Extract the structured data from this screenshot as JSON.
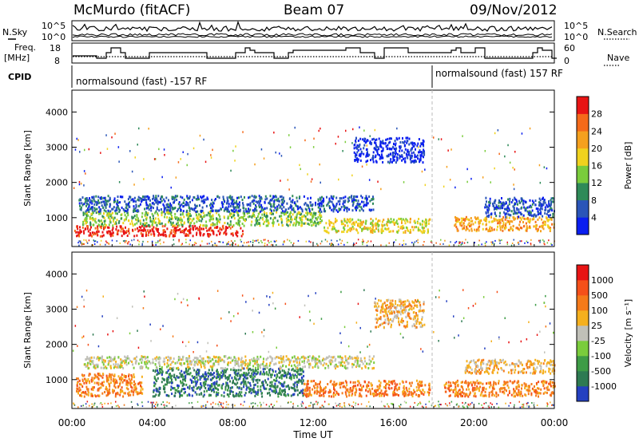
{
  "header": {
    "station": "McMurdo (fitACF)",
    "beam": "Beam 07",
    "date": "09/Nov/2012"
  },
  "top_panels": {
    "nsky_label": "N.Sky",
    "nsearch_label": "N.Search",
    "count_ticks": [
      "10^5",
      "10^0"
    ],
    "freq_label_1": "Freq.",
    "freq_label_2": "[MHz]",
    "freq_ticks": [
      "18",
      "8"
    ],
    "nave_label": "Nave",
    "nave_ticks": [
      "60",
      "0"
    ],
    "cpid_label": "CPID",
    "cpid_segments": [
      "normalsound (fast) -157 RF",
      "normalsound (fast) 157 RF"
    ]
  },
  "chart_data": [
    {
      "type": "heatmap",
      "title": "",
      "quantity": "Power",
      "ylabel": "Slant Range [km]",
      "xlabel": "Time UT",
      "ylim": [
        180,
        4620
      ],
      "yticks": [
        1000,
        2000,
        3000,
        4000
      ],
      "x_ticks": [
        "00:00",
        "04:00",
        "08:00",
        "12:00",
        "16:00",
        "20:00",
        "00:00"
      ],
      "colorbar": {
        "label": "Power [dB]",
        "ticks": [
          "4",
          "8",
          "12",
          "16",
          "20",
          "24",
          "28"
        ],
        "colors": [
          "#0a1ef0",
          "#2a55b8",
          "#2e8a58",
          "#7acc3c",
          "#f0d21e",
          "#f5a01e",
          "#f56a1a",
          "#e81414"
        ]
      },
      "scatter_bands": [
        {
          "t0": 0.1,
          "t1": 8.5,
          "r0": 500,
          "r1": 800,
          "level": 7
        },
        {
          "t0": 0.5,
          "t1": 12.5,
          "r0": 800,
          "r1": 1200,
          "level": 3
        },
        {
          "t0": 0.3,
          "t1": 15.0,
          "r0": 1200,
          "r1": 1650,
          "level": 1
        },
        {
          "t0": 12.5,
          "t1": 17.8,
          "r0": 600,
          "r1": 1000,
          "level": 4
        },
        {
          "t0": 19.0,
          "t1": 24.0,
          "r0": 650,
          "r1": 1050,
          "level": 5
        },
        {
          "t0": 20.5,
          "t1": 24.0,
          "r0": 1050,
          "r1": 1600,
          "level": 1
        },
        {
          "t0": 14.0,
          "t1": 17.5,
          "r0": 2600,
          "r1": 3300,
          "level": 0
        }
      ]
    },
    {
      "type": "heatmap",
      "title": "",
      "quantity": "Velocity",
      "ylabel": "Slant Range [km]",
      "xlabel": "Time UT",
      "ylim": [
        180,
        4620
      ],
      "yticks": [
        1000,
        2000,
        3000,
        4000
      ],
      "x_ticks": [
        "00:00",
        "04:00",
        "08:00",
        "12:00",
        "16:00",
        "20:00",
        "00:00"
      ],
      "colorbar": {
        "label": "Velocity [m s⁻¹]",
        "ticks": [
          "1000",
          "500",
          "100",
          "25",
          "-25",
          "-100",
          "-500",
          "-1000"
        ],
        "colors": [
          "#2440c0",
          "#2e7a52",
          "#3e9c46",
          "#7acc3c",
          "#c0c0b8",
          "#f5b01e",
          "#f57a1a",
          "#f5501a",
          "#e81414"
        ]
      },
      "scatter_bands": [
        {
          "t0": 0.2,
          "t1": 3.5,
          "r0": 550,
          "r1": 1200,
          "level": 6
        },
        {
          "t0": 4.0,
          "t1": 11.5,
          "r0": 550,
          "r1": 1350,
          "level": 1
        },
        {
          "t0": 11.5,
          "t1": 17.8,
          "r0": 550,
          "r1": 1000,
          "level": 6
        },
        {
          "t0": 0.5,
          "t1": 15.0,
          "r0": 1350,
          "r1": 1700,
          "level": 4
        },
        {
          "t0": 18.5,
          "t1": 24.0,
          "r0": 550,
          "r1": 1000,
          "level": 6
        },
        {
          "t0": 19.5,
          "t1": 24.0,
          "r0": 1200,
          "r1": 1600,
          "level": 5
        },
        {
          "t0": 15.0,
          "t1": 17.5,
          "r0": 2500,
          "r1": 3300,
          "level": 5
        }
      ]
    }
  ]
}
